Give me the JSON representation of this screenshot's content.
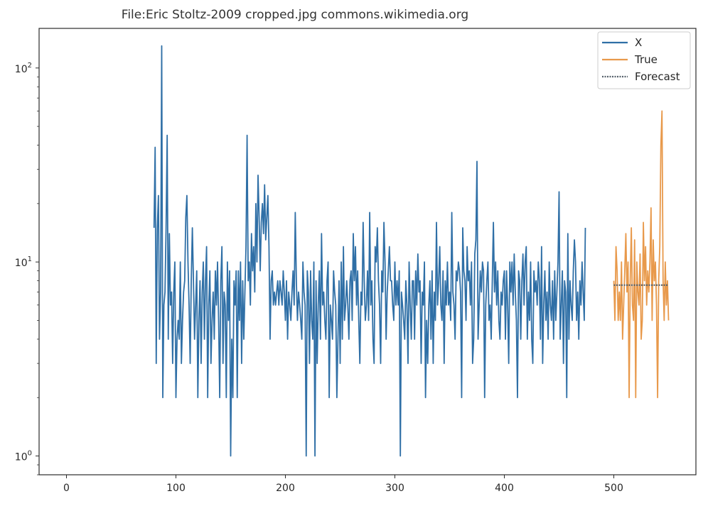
{
  "chart_data": {
    "type": "line",
    "title": "File:Eric Stoltz-2009 cropped.jpg commons.wikimedia.org",
    "xlabel": "",
    "ylabel": "",
    "yscale": "log",
    "xlim": [
      -25,
      575
    ],
    "ylim": [
      0.8,
      160
    ],
    "x_ticks": [
      0,
      100,
      200,
      300,
      400,
      500
    ],
    "x_tick_labels": [
      "0",
      "100",
      "200",
      "300",
      "400",
      "500"
    ],
    "y_ticks": [
      1,
      10,
      100
    ],
    "y_tick_labels": [
      "10",
      "10",
      "10"
    ],
    "y_tick_exponents": [
      "0",
      "1",
      "2"
    ],
    "grid": false,
    "legend_position": "top-right",
    "series": [
      {
        "name": "X",
        "color": "#2f6fa6",
        "x_start": 80,
        "values": [
          15,
          39,
          3,
          15,
          22,
          4,
          7,
          130,
          2,
          6,
          7,
          15,
          45,
          4,
          14,
          6,
          7,
          3,
          7,
          10,
          2,
          4,
          5,
          4,
          10,
          3,
          5,
          7,
          8,
          17,
          22,
          10,
          6,
          3,
          8,
          15,
          8,
          4,
          6,
          9,
          2,
          5,
          8,
          3,
          7,
          10,
          4,
          8,
          12,
          2,
          6,
          9,
          3,
          5,
          7,
          4,
          9,
          6,
          10,
          5,
          2,
          8,
          12,
          3,
          7,
          6,
          2,
          10,
          5,
          9,
          1,
          4,
          2,
          8,
          6,
          9,
          2,
          9,
          5,
          10,
          3,
          8,
          4,
          7,
          12,
          45,
          8,
          10,
          6,
          14,
          9,
          12,
          7,
          20,
          10,
          28,
          17,
          9,
          16,
          20,
          14,
          25,
          13,
          17,
          22,
          12,
          4,
          8,
          9,
          6,
          7,
          6,
          7,
          8,
          6,
          8,
          7,
          6,
          9,
          7,
          5,
          8,
          4,
          7,
          6,
          5,
          7,
          9,
          6,
          18,
          8,
          5,
          7,
          6,
          5,
          4,
          10,
          7,
          6,
          1,
          9,
          7,
          3,
          9,
          5,
          4,
          10,
          1,
          8,
          3,
          6,
          9,
          4,
          14,
          6,
          7,
          5,
          4,
          8,
          10,
          2,
          6,
          5,
          4,
          9,
          7,
          6,
          2,
          4,
          8,
          3,
          10,
          4,
          12,
          5,
          6,
          8,
          6,
          4,
          8,
          9,
          5,
          14,
          8,
          12,
          6,
          9,
          5,
          3,
          7,
          6,
          16,
          8,
          5,
          6,
          9,
          5,
          18,
          6,
          8,
          4,
          3,
          12,
          10,
          15,
          8,
          6,
          3,
          9,
          7,
          16,
          10,
          4,
          7,
          9,
          12,
          8,
          8,
          6,
          5,
          10,
          6,
          8,
          6,
          9,
          1,
          7,
          6,
          5,
          4,
          8,
          6,
          3,
          10,
          6,
          4,
          8,
          8,
          4,
          9,
          6,
          11,
          7,
          8,
          3,
          7,
          6,
          10,
          2,
          5,
          3,
          6,
          8,
          4,
          9,
          3,
          7,
          5,
          16,
          6,
          8,
          12,
          6,
          5,
          9,
          3,
          8,
          6,
          10,
          6,
          7,
          5,
          18,
          7,
          6,
          4,
          9,
          8,
          10,
          9,
          7,
          2,
          15,
          9,
          8,
          5,
          12,
          8,
          9,
          6,
          10,
          3,
          4,
          11,
          13,
          33,
          4,
          6,
          9,
          7,
          10,
          9,
          2,
          6,
          8,
          10,
          5,
          6,
          4,
          8,
          16,
          7,
          10,
          6,
          9,
          5,
          4,
          7,
          6,
          8,
          9,
          4,
          9,
          6,
          3,
          10,
          7,
          10,
          6,
          11,
          7,
          5,
          2,
          9,
          8,
          4,
          8,
          11,
          6,
          10,
          12,
          4,
          7,
          5,
          10,
          4,
          3,
          9,
          7,
          8,
          6,
          10,
          8,
          4,
          12,
          3,
          6,
          9,
          5,
          7,
          4,
          10,
          6,
          5,
          8,
          4,
          9,
          5,
          7,
          10,
          23,
          4,
          6,
          9,
          3,
          8,
          7,
          2,
          14,
          4,
          8,
          6,
          5,
          9,
          13,
          10,
          5,
          7,
          4,
          8,
          6,
          10,
          7,
          5,
          15
        ]
      },
      {
        "name": "True",
        "color": "#e8994b",
        "x_start": 500,
        "values": [
          8,
          5,
          12,
          9,
          5,
          7,
          5,
          10,
          4,
          6,
          9,
          14,
          7,
          10,
          2,
          8,
          15,
          6,
          5,
          13,
          2,
          10,
          7,
          6,
          11,
          4,
          5,
          16,
          8,
          12,
          6,
          9,
          7,
          10,
          19,
          5,
          13,
          8,
          10,
          6,
          2,
          8,
          12,
          40,
          60,
          8,
          5,
          10,
          6,
          8,
          5
        ]
      },
      {
        "name": "Forecast",
        "color": "#55606a",
        "x": [
          500,
          550
        ],
        "values": [
          7.6,
          7.6
        ]
      }
    ]
  }
}
